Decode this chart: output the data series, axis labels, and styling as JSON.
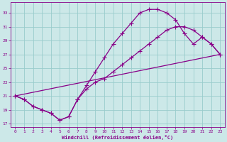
{
  "xlabel": "Windchill (Refroidissement éolien,°C)",
  "xlim": [
    -0.5,
    23.5
  ],
  "ylim": [
    16.5,
    34.5
  ],
  "yticks": [
    17,
    19,
    21,
    23,
    25,
    27,
    29,
    31,
    33
  ],
  "xticks": [
    0,
    1,
    2,
    3,
    4,
    5,
    6,
    7,
    8,
    9,
    10,
    11,
    12,
    13,
    14,
    15,
    16,
    17,
    18,
    19,
    20,
    21,
    22,
    23
  ],
  "bg_color": "#cce8e8",
  "line_color": "#880088",
  "grid_color": "#99cccc",
  "line1_x": [
    0,
    1,
    2,
    3,
    4,
    5,
    6,
    7,
    8,
    9,
    10,
    11,
    12,
    13,
    14,
    15,
    16,
    17,
    18,
    19,
    20,
    21,
    22,
    23
  ],
  "line1_y": [
    21,
    20.5,
    19.5,
    19.0,
    18.5,
    17.5,
    18.0,
    20.5,
    22.5,
    24.5,
    26.5,
    28.5,
    30.0,
    31.5,
    33.0,
    33.5,
    33.5,
    33.0,
    32.0,
    30.0,
    28.5,
    29.5,
    28.5,
    27.0
  ],
  "line2_x": [
    0,
    1,
    2,
    3,
    4,
    5,
    6,
    7,
    8,
    9,
    10,
    11,
    12,
    13,
    14,
    15,
    16,
    17,
    18,
    19,
    20,
    21,
    22,
    23
  ],
  "line2_y": [
    21,
    20.5,
    19.5,
    19.0,
    18.5,
    17.5,
    18.0,
    20.5,
    22.0,
    23.0,
    23.5,
    24.5,
    25.5,
    26.5,
    27.5,
    28.5,
    29.5,
    30.5,
    31.0,
    31.0,
    30.5,
    29.5,
    28.5,
    27.0
  ],
  "line3_x": [
    0,
    23
  ],
  "line3_y": [
    21,
    27
  ]
}
